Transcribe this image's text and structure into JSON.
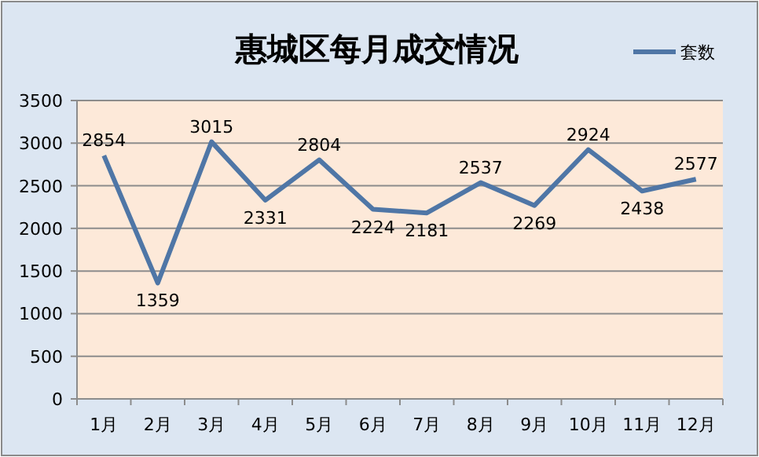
{
  "chart_data": {
    "type": "line",
    "title": "惠城区每月成交情况",
    "categories": [
      "1月",
      "2月",
      "3月",
      "4月",
      "5月",
      "6月",
      "7月",
      "8月",
      "9月",
      "10月",
      "11月",
      "12月"
    ],
    "series": [
      {
        "name": "套数",
        "color": "#4f76a6",
        "values": [
          2854,
          1359,
          3015,
          2331,
          2804,
          2224,
          2181,
          2537,
          2269,
          2924,
          2438,
          2577
        ]
      }
    ],
    "ylim": [
      0,
      3500
    ],
    "yticks": [
      0,
      500,
      1000,
      1500,
      2000,
      2500,
      3000,
      3500
    ],
    "grid": "y",
    "legend": "top right",
    "data_labels": true,
    "marker": "none",
    "line_style": "solid"
  }
}
